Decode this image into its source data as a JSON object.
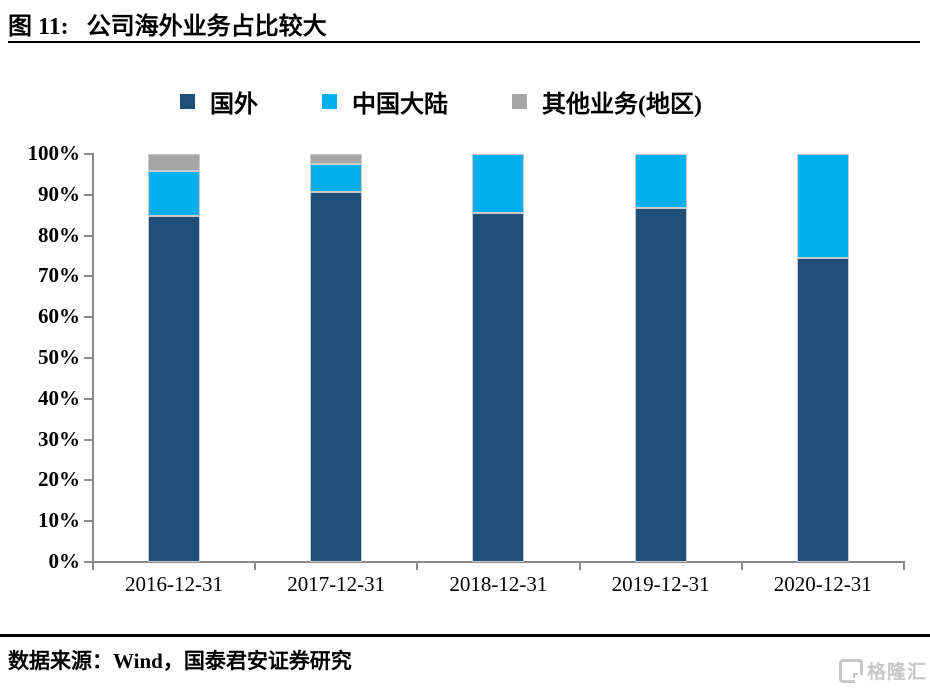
{
  "header": {
    "figure_label": "图 11:",
    "title": "公司海外业务占比较大"
  },
  "chart_data": {
    "type": "bar",
    "stacked": true,
    "title": "公司海外业务占比较大",
    "categories": [
      "2016-12-31",
      "2017-12-31",
      "2018-12-31",
      "2019-12-31",
      "2020-12-31"
    ],
    "series": [
      {
        "name": "国外",
        "color": "#1F4E79",
        "values": [
          84.8,
          90.6,
          85.6,
          86.8,
          74.4
        ]
      },
      {
        "name": "中国大陆",
        "color": "#00B0F0",
        "values": [
          11.0,
          6.9,
          14.4,
          13.2,
          25.6
        ]
      },
      {
        "name": "其他业务(地区)",
        "color": "#A6A6A6",
        "values": [
          4.2,
          2.5,
          0.0,
          0.0,
          0.0
        ]
      }
    ],
    "unit": "percent",
    "ylabel": "",
    "xlabel": "",
    "ylim": [
      0,
      100
    ],
    "y_ticks": [
      "100%",
      "90%",
      "80%",
      "70%",
      "60%",
      "50%",
      "40%",
      "30%",
      "20%",
      "10%",
      "0%"
    ],
    "grid": false,
    "legend_position": "top",
    "axis_color": "#898989"
  },
  "footer": {
    "source": "数据来源：Wind，国泰君安证券研究",
    "logo_text": "格隆汇"
  }
}
